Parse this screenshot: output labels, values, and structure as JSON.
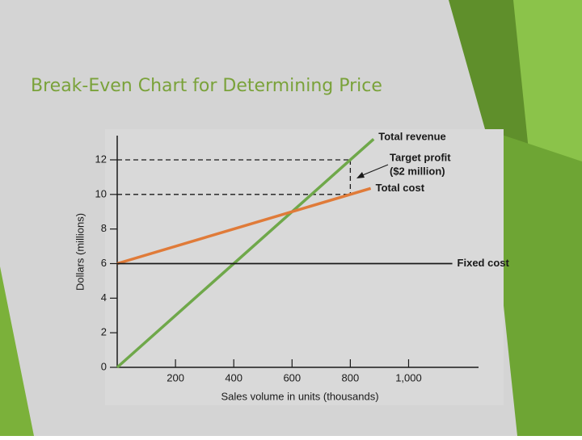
{
  "chart_data": {
    "type": "line",
    "title": "Break-Even Chart for Determining Price",
    "x_label": "Sales volume in units (thousands)",
    "y_label": "Dollars (millions)",
    "xlim": [
      0,
      1240
    ],
    "ylim": [
      0,
      13.4
    ],
    "xticks": [
      200,
      400,
      600,
      800,
      {
        "value": 1000,
        "label": "1,000"
      }
    ],
    "yticks": [
      0,
      2,
      4,
      6,
      8,
      10,
      12
    ],
    "series": [
      {
        "name": "Total revenue",
        "color": "#6fa84a",
        "x": [
          0,
          800,
          880
        ],
        "values": [
          0,
          12,
          13.2
        ]
      },
      {
        "name": "Total cost",
        "color": "#e07b39",
        "x": [
          0,
          800,
          870
        ],
        "values": [
          6,
          10,
          10.35
        ]
      },
      {
        "name": "Fixed cost",
        "color": "#1a1a1a",
        "x": [
          0,
          1150
        ],
        "values": [
          6,
          6
        ]
      }
    ],
    "annotation": [
      "Target profit",
      "($2 million)"
    ]
  }
}
